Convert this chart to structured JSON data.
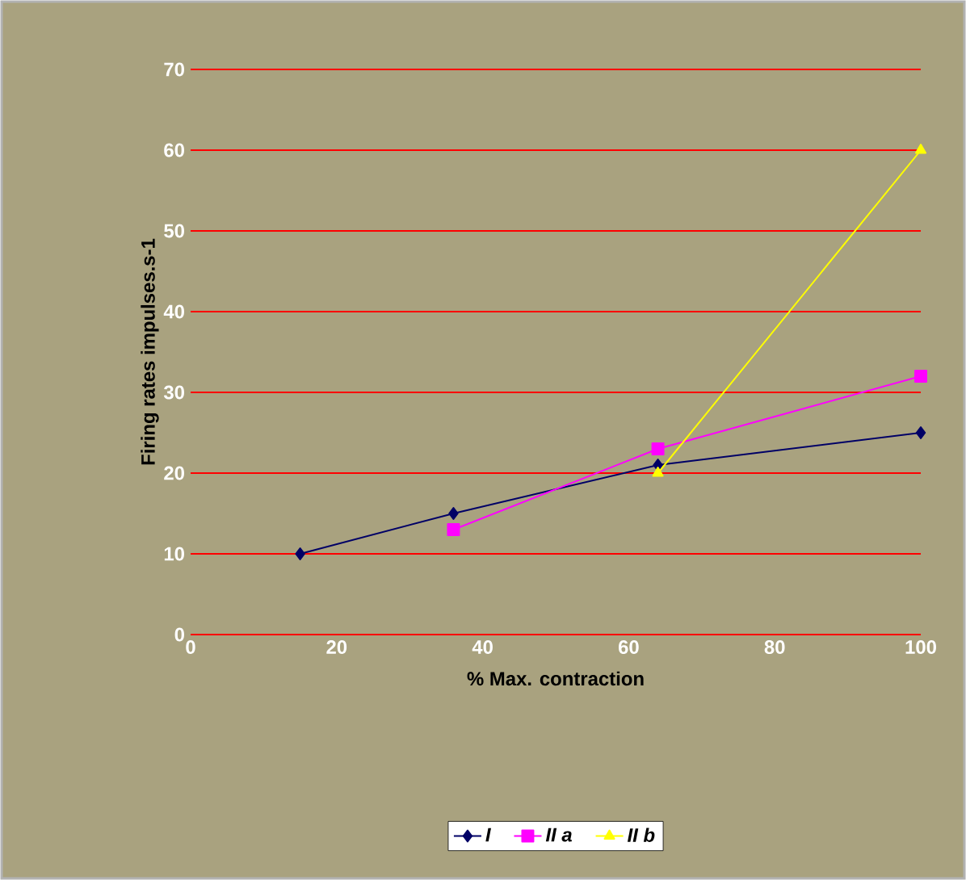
{
  "chart_data": {
    "type": "line",
    "xlabel": "% Max. contraction",
    "ylabel": "Firing rates impulses.s-1",
    "xlim": [
      0,
      100
    ],
    "ylim": [
      0,
      70
    ],
    "xticks": [
      0,
      20,
      40,
      60,
      80,
      100
    ],
    "yticks": [
      0,
      10,
      20,
      30,
      40,
      50,
      60,
      70
    ],
    "grid": "y",
    "legend": "bottom",
    "series": [
      {
        "name": "I",
        "color": "#000066",
        "marker": "diamond",
        "x": [
          15,
          36,
          64,
          100
        ],
        "values": [
          10,
          15,
          21,
          25
        ]
      },
      {
        "name": "II a",
        "color": "#ff00ff",
        "marker": "square",
        "x": [
          36,
          64,
          100
        ],
        "values": [
          13,
          23,
          32
        ]
      },
      {
        "name": "II b",
        "color": "#ffff00",
        "marker": "triangle",
        "x": [
          64,
          100
        ],
        "values": [
          20,
          60
        ]
      }
    ]
  }
}
